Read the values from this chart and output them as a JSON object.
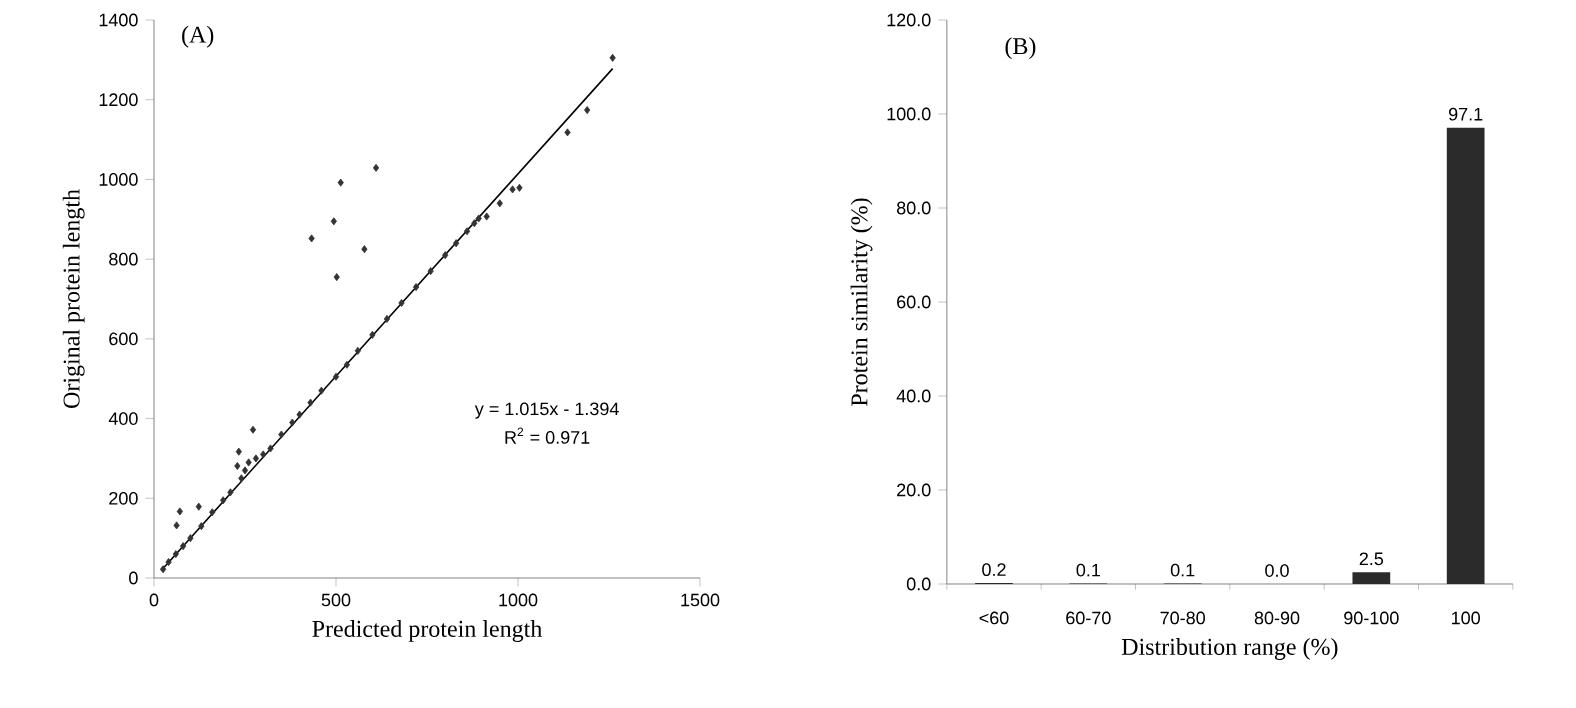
{
  "chart_data": [
    {
      "type": "scatter",
      "xlabel": "Predicted protein length",
      "ylabel": "Original protein length",
      "xlim": [
        0,
        1500
      ],
      "ylim": [
        0,
        1400
      ],
      "xticks": [
        0,
        500,
        1000,
        1500
      ],
      "yticks": [
        0,
        200,
        400,
        600,
        800,
        1000,
        1200,
        1400
      ],
      "grid": false,
      "annotations": [
        "(A)",
        "y = 1.015x - 1.394",
        "R$^{2}$ = 0.971"
      ],
      "series": [
        {
          "type": "scatter",
          "marker": "diamond",
          "color": "#333333",
          "x": [
            25,
            40,
            60,
            80,
            100,
            130,
            160,
            190,
            210,
            229,
            240,
            250,
            260,
            280,
            300,
            320,
            350,
            380,
            400,
            430,
            460,
            500,
            530,
            560,
            600,
            640,
            680,
            720,
            760,
            800,
            830,
            860,
            880,
            892,
            914,
            950,
            985,
            1004,
            1136,
            1190,
            1260,
            62,
            71,
            123,
            233,
            272,
            433,
            494,
            513,
            502,
            610,
            578
          ],
          "values": [
            22,
            40,
            60,
            80,
            100,
            130,
            165,
            195,
            215,
            281,
            250,
            270,
            290,
            300,
            310,
            325,
            360,
            390,
            410,
            440,
            470,
            505,
            535,
            570,
            610,
            650,
            690,
            730,
            770,
            810,
            840,
            870,
            890,
            902,
            907,
            940,
            975,
            979,
            1118,
            1174,
            1305,
            132,
            167,
            179,
            317,
            372,
            852,
            895,
            992,
            755,
            1029,
            825
          ]
        },
        {
          "type": "line",
          "color": "#000000",
          "line_style": "solid",
          "marker": "none",
          "x": [
            20,
            1260
          ],
          "values": [
            19,
            1278
          ]
        }
      ]
    },
    {
      "type": "bar",
      "xlabel": "Distribution range (%)",
      "ylabel": "Protein similarity (%)",
      "ylim": [
        0,
        120
      ],
      "yticks": [
        {
          "value": 0,
          "label": "0.0"
        },
        {
          "value": 20,
          "label": "20.0"
        },
        {
          "value": 40,
          "label": "40.0"
        },
        {
          "value": 60,
          "label": "60.0"
        },
        {
          "value": 80,
          "label": "80.0"
        },
        {
          "value": 100,
          "label": "100.0"
        },
        {
          "value": 120,
          "label": "120.0"
        }
      ],
      "grid": false,
      "annotations": [
        "(B)"
      ],
      "categories": [
        "<60",
        "60-70",
        "70-80",
        "80-90",
        "90-100",
        "100"
      ],
      "values": [
        0.2,
        0.1,
        0.1,
        0.0,
        2.5,
        97.1
      ],
      "value_labels": [
        "0.2",
        "0.1",
        "0.1",
        "0.0",
        "2.5",
        "97.1"
      ],
      "color": "#2b2b2b"
    }
  ]
}
